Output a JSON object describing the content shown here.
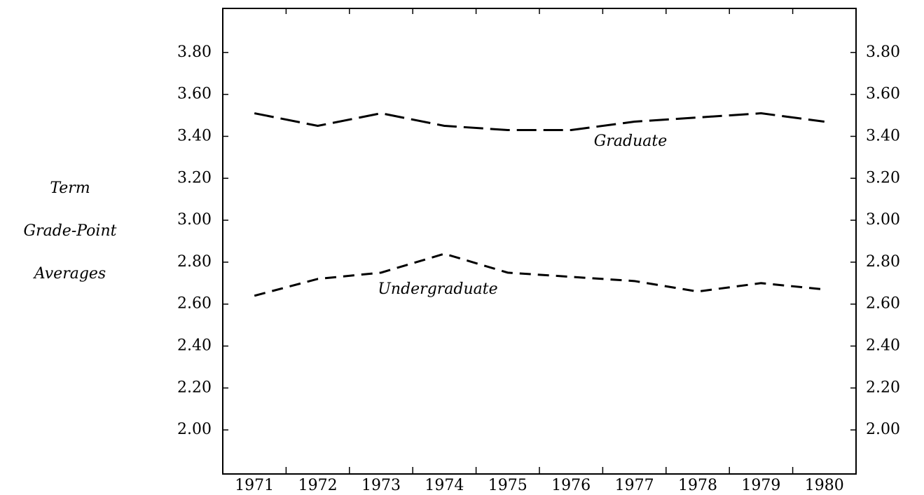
{
  "chart_data": {
    "type": "line",
    "y_label_lines": [
      "Term",
      "Grade-Point",
      "Averages"
    ],
    "categories": [
      "1971",
      "1972",
      "1973",
      "1974",
      "1975",
      "1976",
      "1977",
      "1978",
      "1979",
      "1980"
    ],
    "series": [
      {
        "name": "Graduate",
        "color": "#000000",
        "dash": "28 10",
        "values": [
          3.51,
          3.45,
          3.51,
          3.45,
          3.43,
          3.43,
          3.47,
          3.49,
          3.51,
          3.47
        ]
      },
      {
        "name": "Undergraduate",
        "color": "#000000",
        "dash": "16 10",
        "values": [
          2.64,
          2.72,
          2.75,
          2.84,
          2.75,
          2.73,
          2.71,
          2.66,
          2.7,
          2.67
        ]
      }
    ],
    "ylim": [
      1.79,
      4.01
    ],
    "yticks": [
      {
        "value": 2.0,
        "label": "2.00"
      },
      {
        "value": 2.2,
        "label": "2.20"
      },
      {
        "value": 2.4,
        "label": "2.40"
      },
      {
        "value": 2.6,
        "label": "2.60"
      },
      {
        "value": 2.8,
        "label": "2.80"
      },
      {
        "value": 3.0,
        "label": "3.00"
      },
      {
        "value": 3.2,
        "label": "3.20"
      },
      {
        "value": 3.4,
        "label": "3.40"
      },
      {
        "value": 3.6,
        "label": "3.60"
      },
      {
        "value": 3.8,
        "label": "3.80"
      }
    ],
    "right_axis_labels": true,
    "grid": false
  }
}
